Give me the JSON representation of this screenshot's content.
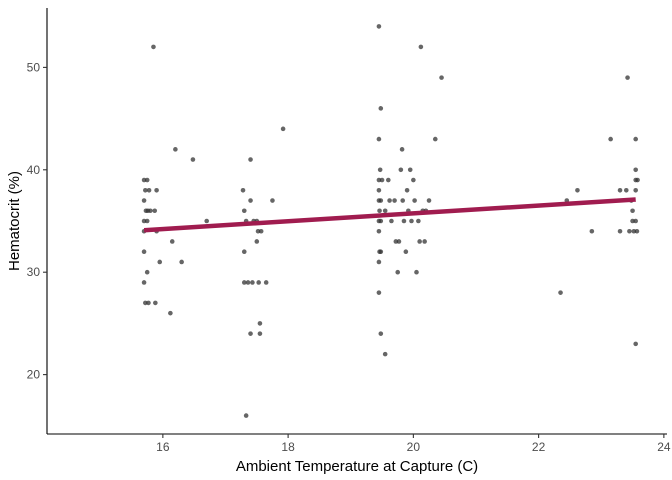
{
  "chart_data": {
    "type": "scatter",
    "title": "",
    "xlabel": "Ambient Temperature at Capture (C)",
    "ylabel": "Hematocrit (%)",
    "xlim": [
      14.15,
      24.05
    ],
    "ylim": [
      14.2,
      55.8
    ],
    "xticks": [
      16,
      18,
      20,
      22,
      24
    ],
    "yticks": [
      20,
      30,
      40,
      50
    ],
    "grid": false,
    "legend": "none",
    "colors": {
      "points": "#333333",
      "trend_line": "#A01C4F",
      "axis": "#000000"
    },
    "points": [
      {
        "x": 15.7,
        "y": 39
      },
      {
        "x": 15.75,
        "y": 39
      },
      {
        "x": 15.72,
        "y": 38
      },
      {
        "x": 15.78,
        "y": 38
      },
      {
        "x": 15.7,
        "y": 37
      },
      {
        "x": 15.8,
        "y": 36
      },
      {
        "x": 15.73,
        "y": 36
      },
      {
        "x": 15.76,
        "y": 36
      },
      {
        "x": 15.7,
        "y": 35
      },
      {
        "x": 15.75,
        "y": 35
      },
      {
        "x": 15.7,
        "y": 34
      },
      {
        "x": 15.7,
        "y": 32
      },
      {
        "x": 15.75,
        "y": 30
      },
      {
        "x": 15.7,
        "y": 29
      },
      {
        "x": 15.72,
        "y": 27
      },
      {
        "x": 15.77,
        "y": 27
      },
      {
        "x": 15.85,
        "y": 52
      },
      {
        "x": 15.9,
        "y": 38
      },
      {
        "x": 15.87,
        "y": 36
      },
      {
        "x": 15.9,
        "y": 34
      },
      {
        "x": 15.95,
        "y": 31
      },
      {
        "x": 15.88,
        "y": 27
      },
      {
        "x": 16.12,
        "y": 26
      },
      {
        "x": 16.15,
        "y": 33
      },
      {
        "x": 16.2,
        "y": 42
      },
      {
        "x": 16.3,
        "y": 31
      },
      {
        "x": 16.48,
        "y": 41
      },
      {
        "x": 16.7,
        "y": 35
      },
      {
        "x": 17.28,
        "y": 38
      },
      {
        "x": 17.3,
        "y": 36
      },
      {
        "x": 17.33,
        "y": 35
      },
      {
        "x": 17.3,
        "y": 32
      },
      {
        "x": 17.3,
        "y": 29
      },
      {
        "x": 17.36,
        "y": 29
      },
      {
        "x": 17.33,
        "y": 16
      },
      {
        "x": 17.4,
        "y": 41
      },
      {
        "x": 17.4,
        "y": 37
      },
      {
        "x": 17.45,
        "y": 35
      },
      {
        "x": 17.43,
        "y": 29
      },
      {
        "x": 17.4,
        "y": 24
      },
      {
        "x": 17.5,
        "y": 35
      },
      {
        "x": 17.52,
        "y": 34
      },
      {
        "x": 17.5,
        "y": 33
      },
      {
        "x": 17.53,
        "y": 29
      },
      {
        "x": 17.55,
        "y": 25
      },
      {
        "x": 17.55,
        "y": 24
      },
      {
        "x": 17.57,
        "y": 34
      },
      {
        "x": 17.65,
        "y": 29
      },
      {
        "x": 17.75,
        "y": 37
      },
      {
        "x": 17.92,
        "y": 44
      },
      {
        "x": 19.45,
        "y": 54
      },
      {
        "x": 19.48,
        "y": 46
      },
      {
        "x": 19.45,
        "y": 43
      },
      {
        "x": 19.47,
        "y": 40
      },
      {
        "x": 19.45,
        "y": 39
      },
      {
        "x": 19.5,
        "y": 39
      },
      {
        "x": 19.45,
        "y": 38
      },
      {
        "x": 19.45,
        "y": 37
      },
      {
        "x": 19.48,
        "y": 37
      },
      {
        "x": 19.46,
        "y": 36
      },
      {
        "x": 19.45,
        "y": 35
      },
      {
        "x": 19.48,
        "y": 35
      },
      {
        "x": 19.45,
        "y": 34
      },
      {
        "x": 19.46,
        "y": 32
      },
      {
        "x": 19.48,
        "y": 32
      },
      {
        "x": 19.45,
        "y": 31
      },
      {
        "x": 19.45,
        "y": 28
      },
      {
        "x": 19.48,
        "y": 24
      },
      {
        "x": 19.55,
        "y": 22
      },
      {
        "x": 19.55,
        "y": 36
      },
      {
        "x": 19.6,
        "y": 39
      },
      {
        "x": 19.62,
        "y": 37
      },
      {
        "x": 19.65,
        "y": 35
      },
      {
        "x": 19.7,
        "y": 37
      },
      {
        "x": 19.72,
        "y": 33
      },
      {
        "x": 19.75,
        "y": 30
      },
      {
        "x": 19.77,
        "y": 33
      },
      {
        "x": 19.8,
        "y": 40
      },
      {
        "x": 19.82,
        "y": 42
      },
      {
        "x": 19.83,
        "y": 37
      },
      {
        "x": 19.85,
        "y": 35
      },
      {
        "x": 19.88,
        "y": 32
      },
      {
        "x": 19.9,
        "y": 38
      },
      {
        "x": 19.92,
        "y": 36
      },
      {
        "x": 19.95,
        "y": 40
      },
      {
        "x": 19.97,
        "y": 35
      },
      {
        "x": 20.0,
        "y": 39
      },
      {
        "x": 20.02,
        "y": 37
      },
      {
        "x": 20.05,
        "y": 30
      },
      {
        "x": 20.08,
        "y": 35
      },
      {
        "x": 20.1,
        "y": 33
      },
      {
        "x": 20.12,
        "y": 52
      },
      {
        "x": 20.15,
        "y": 36
      },
      {
        "x": 20.18,
        "y": 33
      },
      {
        "x": 20.2,
        "y": 36
      },
      {
        "x": 20.25,
        "y": 37
      },
      {
        "x": 20.35,
        "y": 43
      },
      {
        "x": 20.45,
        "y": 49
      },
      {
        "x": 22.35,
        "y": 28
      },
      {
        "x": 22.45,
        "y": 37
      },
      {
        "x": 22.62,
        "y": 38
      },
      {
        "x": 22.85,
        "y": 34
      },
      {
        "x": 23.15,
        "y": 43
      },
      {
        "x": 23.3,
        "y": 38
      },
      {
        "x": 23.3,
        "y": 34
      },
      {
        "x": 23.4,
        "y": 38
      },
      {
        "x": 23.45,
        "y": 34
      },
      {
        "x": 23.42,
        "y": 49
      },
      {
        "x": 23.48,
        "y": 37
      },
      {
        "x": 23.5,
        "y": 36
      },
      {
        "x": 23.5,
        "y": 35
      },
      {
        "x": 23.52,
        "y": 34
      },
      {
        "x": 23.55,
        "y": 43
      },
      {
        "x": 23.55,
        "y": 40
      },
      {
        "x": 23.55,
        "y": 39
      },
      {
        "x": 23.58,
        "y": 39
      },
      {
        "x": 23.55,
        "y": 38
      },
      {
        "x": 23.57,
        "y": 34
      },
      {
        "x": 23.55,
        "y": 35
      },
      {
        "x": 23.55,
        "y": 23
      }
    ],
    "trend_line": {
      "x": [
        15.7,
        23.55
      ],
      "y": [
        34.1,
        37.1
      ]
    }
  }
}
